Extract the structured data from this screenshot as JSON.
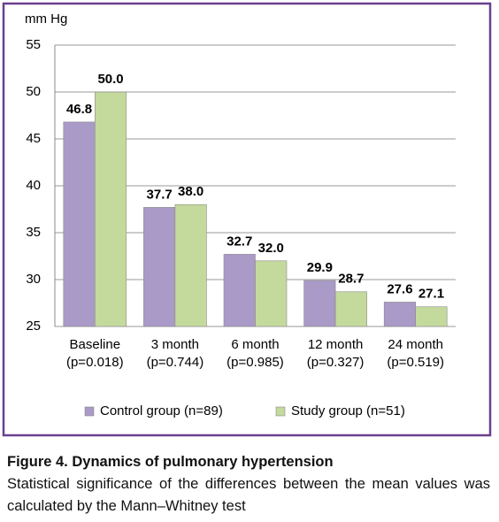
{
  "chart_data": {
    "type": "bar",
    "y_label": "mm Hg",
    "categories": [
      [
        "Baseline",
        "(p=0.018)"
      ],
      [
        "3 month",
        "(p=0.744)"
      ],
      [
        "6 month",
        "(p=0.985)"
      ],
      [
        "12 month",
        "(p=0.327)"
      ],
      [
        "24 month",
        "(p=0.519)"
      ]
    ],
    "series": [
      {
        "name": "Control group (n=89)",
        "color": "#a99ac8",
        "values": [
          46.8,
          37.7,
          32.7,
          29.9,
          27.6
        ],
        "value_labels": [
          "46.8",
          "37.7",
          "32.7",
          "29.9",
          "27.6"
        ]
      },
      {
        "name": "Study group (n=51)",
        "color": "#c4d99c",
        "values": [
          50,
          38,
          32,
          28.7,
          27.1
        ],
        "value_labels": [
          "50.0",
          "38.0",
          "32.0",
          "28.7",
          "27.1"
        ]
      }
    ],
    "ylim": [
      25,
      55
    ],
    "yticks": [
      25,
      30,
      35,
      40,
      45,
      50,
      55
    ],
    "grid": true,
    "legend": "bottom"
  },
  "caption": {
    "title": "Figure 4. Dynamics of pulmonary hypertension",
    "text": "Statistical significance of the differences between the mean values was calculated by the Mann–Whitney test"
  }
}
